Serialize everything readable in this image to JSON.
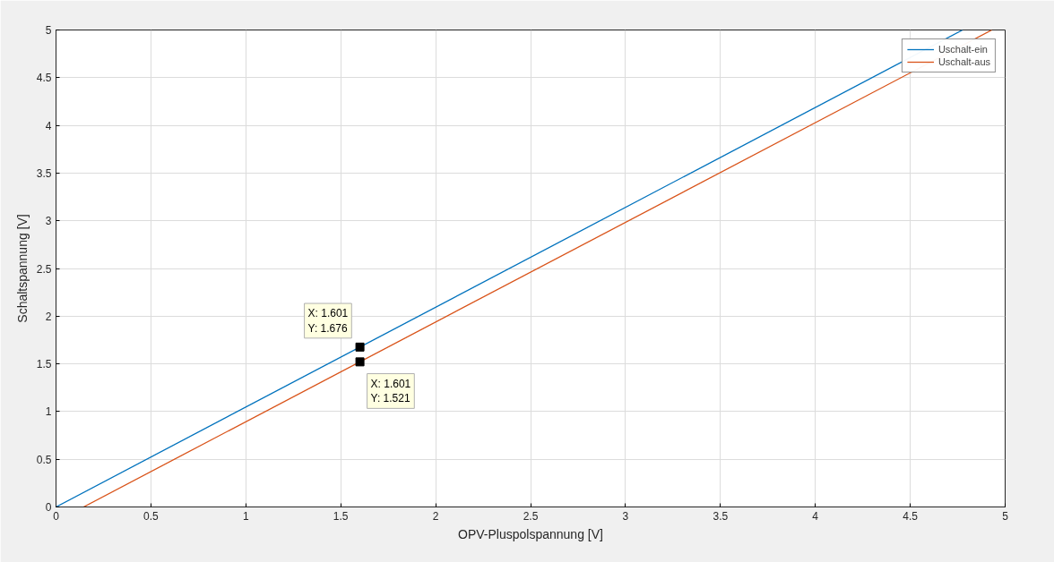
{
  "chart_data": {
    "type": "line",
    "xlabel": "OPV-Pluspolspannung [V]",
    "ylabel": "Schaltspannung [V]",
    "series": [
      {
        "name": "Uschalt-ein",
        "color": "#0072bd",
        "x": [
          0,
          4.776
        ],
        "values": [
          0,
          5
        ]
      },
      {
        "name": "Uschalt-aus",
        "color": "#d95319",
        "x": [
          0.145,
          4.93
        ],
        "values": [
          0,
          5
        ]
      }
    ],
    "annotations": [
      {
        "text": "X: 1.601\nY: 1.676",
        "x": 1.601,
        "y": 1.676
      },
      {
        "text": "X: 1.601\nY: 1.521",
        "x": 1.601,
        "y": 1.521
      }
    ],
    "xlim": [
      0,
      5
    ],
    "xticks": [
      0,
      0.5,
      1,
      1.5,
      2,
      2.5,
      3,
      3.5,
      4,
      4.5,
      5
    ],
    "ylim": [
      0,
      5
    ],
    "yticks": [
      0,
      0.5,
      1,
      1.5,
      2,
      2.5,
      3,
      3.5,
      4,
      4.5,
      5
    ],
    "grid": true,
    "legend": "top right",
    "marker": "none",
    "line_style": "solid"
  }
}
